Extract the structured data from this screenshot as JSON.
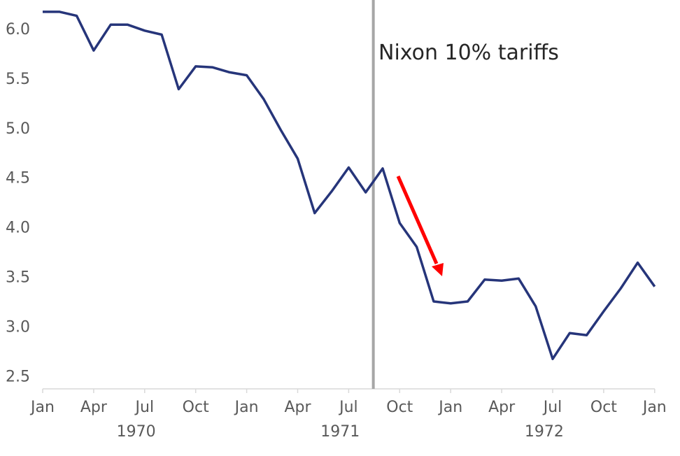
{
  "chart_data": {
    "type": "line",
    "title": "",
    "xlabel": "",
    "ylabel": "",
    "ylim": [
      2.5,
      6.0
    ],
    "yticks": [
      "2.5",
      "3.0",
      "3.5",
      "4.0",
      "4.5",
      "5.0",
      "5.5",
      "6.0"
    ],
    "xticks": [
      "Jan",
      "Apr",
      "Jul",
      "Oct",
      "Jan",
      "Apr",
      "Jul",
      "Oct",
      "Jan",
      "Apr",
      "Jul",
      "Oct",
      "Jan"
    ],
    "years": [
      "1970",
      "1971",
      "1972"
    ],
    "grid": false,
    "legend": "none",
    "x": [
      "1970-01",
      "1970-02",
      "1970-03",
      "1970-04",
      "1970-05",
      "1970-06",
      "1970-07",
      "1970-08",
      "1970-09",
      "1970-10",
      "1970-11",
      "1970-12",
      "1971-01",
      "1971-02",
      "1971-03",
      "1971-04",
      "1971-05",
      "1971-06",
      "1971-07",
      "1971-08",
      "1971-09",
      "1971-10",
      "1971-11",
      "1971-12",
      "1972-01",
      "1972-02",
      "1972-03",
      "1972-04",
      "1972-05",
      "1972-06",
      "1972-07",
      "1972-08",
      "1972-09",
      "1972-10",
      "1972-11",
      "1972-12",
      "1973-01"
    ],
    "series": [
      {
        "values": [
          6.17,
          6.17,
          6.13,
          5.78,
          6.04,
          6.04,
          5.98,
          5.94,
          5.39,
          5.62,
          5.61,
          5.56,
          5.53,
          5.29,
          4.98,
          4.69,
          4.14,
          4.36,
          4.6,
          4.35,
          4.59,
          4.04,
          3.8,
          3.25,
          3.23,
          3.25,
          3.47,
          3.46,
          3.48,
          3.2,
          2.67,
          2.93,
          2.91,
          3.15,
          3.38,
          3.64,
          3.4
        ],
        "color": "#26357a"
      }
    ],
    "annotations": [
      {
        "text": "Nixon 10% tariffs",
        "date": "1971-08-15",
        "type": "vertical-line",
        "color": "#a6a6a6"
      },
      {
        "type": "arrow",
        "direction": "down",
        "color": "#ff0000"
      }
    ]
  }
}
